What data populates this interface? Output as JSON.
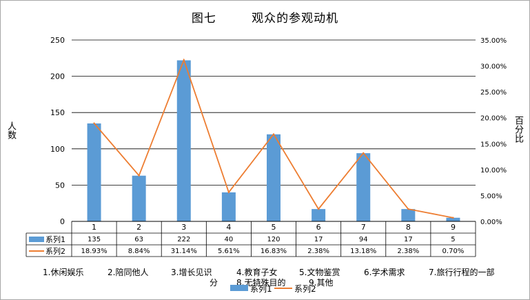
{
  "chart_data": {
    "type": "bar",
    "title": "图七        观众的参观动机",
    "ylabel": "人数",
    "y2label": "百分比",
    "categories": [
      "1",
      "2",
      "3",
      "4",
      "5",
      "6",
      "7",
      "8",
      "9"
    ],
    "series": [
      {
        "name": "系列1",
        "type": "bar",
        "axis": "left",
        "color": "#5b9bd5",
        "values": [
          135,
          63,
          222,
          40,
          120,
          17,
          94,
          17,
          5
        ],
        "labels": [
          "135",
          "63",
          "222",
          "40",
          "120",
          "17",
          "94",
          "17",
          "5"
        ]
      },
      {
        "name": "系列2",
        "type": "line",
        "axis": "right",
        "color": "#ed7d31",
        "values": [
          18.93,
          8.84,
          31.14,
          5.61,
          16.83,
          2.38,
          13.18,
          2.38,
          0.7
        ],
        "labels": [
          "18.93%",
          "8.84%",
          "31.14%",
          "5.61%",
          "16.83%",
          "2.38%",
          "13.18%",
          "2.38%",
          "0.70%"
        ]
      }
    ],
    "ylim": [
      0,
      250
    ],
    "y2lim": [
      0,
      35
    ],
    "yticks": [
      "0",
      "50",
      "100",
      "150",
      "200",
      "250"
    ],
    "y2ticks": [
      "0.00%",
      "5.00%",
      "10.00%",
      "15.00%",
      "20.00%",
      "25.00%",
      "30.00%",
      "35.00%"
    ],
    "grid": true,
    "data_table": true,
    "legend_position": "bottom",
    "category_notes": [
      "1.休闲娱乐",
      "2.陪同他人",
      "3.增长见识",
      "分",
      "4.教育子女",
      "5.文物鉴赏",
      "6.学术需求",
      "7.旅行行程的一部",
      "8.无特殊目的",
      "9.其他"
    ]
  }
}
